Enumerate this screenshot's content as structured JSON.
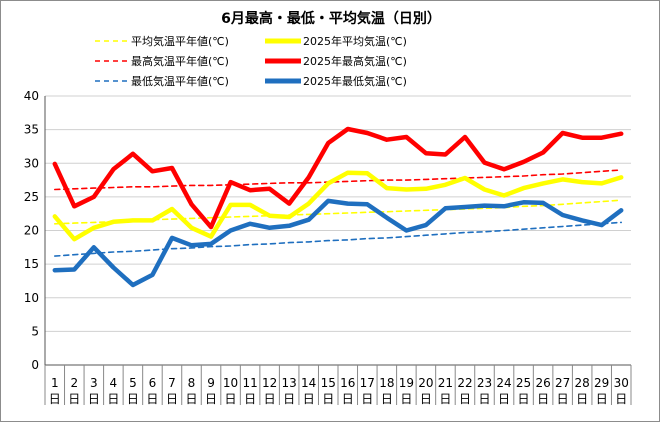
{
  "chart_data": {
    "type": "line",
    "title": "6月最高・最低・平均気温（日別）",
    "xlabel": "",
    "ylabel": "",
    "ylim": [
      0,
      40
    ],
    "yticks": [
      0,
      5,
      10,
      15,
      20,
      25,
      30,
      35,
      40
    ],
    "grid": true,
    "legend_position": "top",
    "x": [
      1,
      2,
      3,
      4,
      5,
      6,
      7,
      8,
      9,
      10,
      11,
      12,
      13,
      14,
      15,
      16,
      17,
      18,
      19,
      20,
      21,
      22,
      23,
      24,
      25,
      26,
      27,
      28,
      29,
      30
    ],
    "x_tick_labels": [
      "1",
      "2",
      "3",
      "4",
      "5",
      "6",
      "7",
      "8",
      "9",
      "10",
      "11",
      "12",
      "13",
      "14",
      "15",
      "16",
      "17",
      "18",
      "19",
      "20",
      "21",
      "22",
      "23",
      "24",
      "25",
      "26",
      "27",
      "28",
      "29",
      "30"
    ],
    "x_tick_suffix": "日",
    "series": [
      {
        "name": "平均気温平年値(℃)",
        "color": "#FFFF00",
        "style": "dashed",
        "values": [
          21.0,
          21.1,
          21.2,
          21.3,
          21.5,
          21.6,
          21.7,
          21.8,
          21.9,
          22.0,
          22.1,
          22.2,
          22.3,
          22.4,
          22.5,
          22.6,
          22.7,
          22.8,
          22.9,
          23.0,
          23.1,
          23.2,
          23.3,
          23.4,
          23.6,
          23.7,
          23.9,
          24.1,
          24.3,
          24.5
        ]
      },
      {
        "name": "2025年平均気温(℃)",
        "color": "#FFFF00",
        "style": "solid",
        "values": [
          22.1,
          18.7,
          20.4,
          21.3,
          21.5,
          21.5,
          23.2,
          20.4,
          19.1,
          23.8,
          23.8,
          22.2,
          22.0,
          24.0,
          27.0,
          28.6,
          28.5,
          26.3,
          26.1,
          26.2,
          26.8,
          27.8,
          26.1,
          25.2,
          26.3,
          27.0,
          27.6,
          27.2,
          27.0,
          27.9
        ]
      },
      {
        "name": "最高気温平年値(℃)",
        "color": "#FF0000",
        "style": "dashed",
        "values": [
          26.1,
          26.2,
          26.3,
          26.4,
          26.5,
          26.5,
          26.6,
          26.7,
          26.7,
          26.8,
          26.9,
          27.0,
          27.1,
          27.1,
          27.2,
          27.3,
          27.4,
          27.5,
          27.5,
          27.6,
          27.7,
          27.8,
          27.9,
          28.0,
          28.1,
          28.3,
          28.4,
          28.6,
          28.8,
          29.0
        ]
      },
      {
        "name": "2025年最高気温(℃)",
        "color": "#FF0000",
        "style": "solid",
        "values": [
          29.9,
          23.6,
          25.0,
          29.1,
          31.4,
          28.8,
          29.3,
          23.9,
          20.5,
          27.2,
          26.0,
          26.2,
          24.0,
          27.9,
          33.0,
          35.1,
          34.5,
          33.5,
          33.9,
          31.5,
          31.3,
          33.9,
          30.1,
          29.1,
          30.2,
          31.6,
          34.5,
          33.8,
          33.8,
          34.4
        ]
      },
      {
        "name": "最低気温平年値(℃)",
        "color": "#1F6FBF",
        "style": "dashed",
        "values": [
          16.2,
          16.4,
          16.6,
          16.8,
          16.9,
          17.1,
          17.3,
          17.4,
          17.6,
          17.7,
          17.9,
          18.0,
          18.2,
          18.3,
          18.5,
          18.6,
          18.8,
          18.9,
          19.1,
          19.3,
          19.5,
          19.7,
          19.8,
          20.0,
          20.2,
          20.4,
          20.6,
          20.8,
          21.0,
          21.2
        ]
      },
      {
        "name": "2025年最低気温(℃)",
        "color": "#1F6FBF",
        "style": "solid",
        "values": [
          14.1,
          14.2,
          17.5,
          14.5,
          11.9,
          13.4,
          18.9,
          17.8,
          18.0,
          20.0,
          21.0,
          20.4,
          20.7,
          21.6,
          24.4,
          24.0,
          23.9,
          21.9,
          20.0,
          20.8,
          23.3,
          23.5,
          23.7,
          23.6,
          24.2,
          24.1,
          22.3,
          21.5,
          20.8,
          23.0
        ]
      }
    ]
  }
}
